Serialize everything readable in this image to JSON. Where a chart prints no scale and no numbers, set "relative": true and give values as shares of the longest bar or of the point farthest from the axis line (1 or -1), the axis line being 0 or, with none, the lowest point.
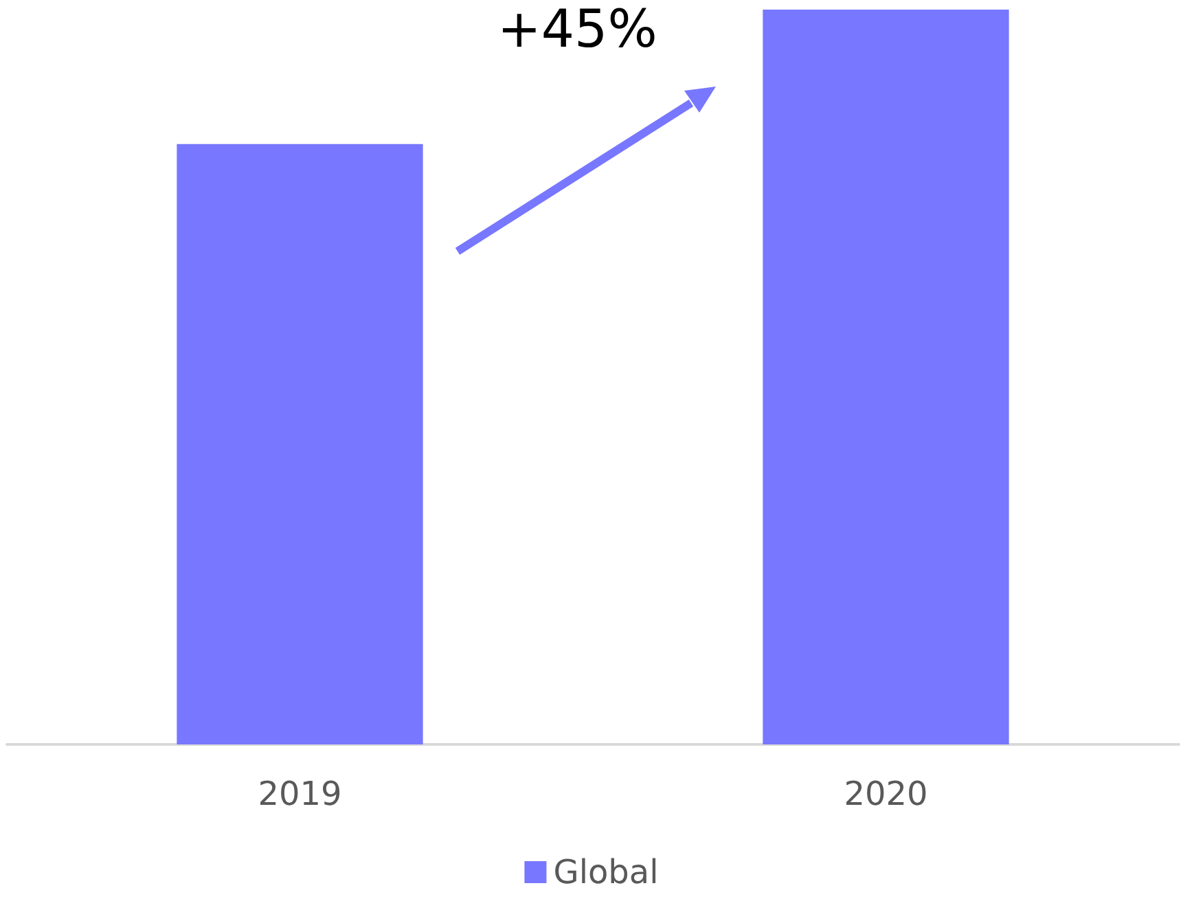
{
  "chart_data": {
    "type": "bar",
    "relative": true,
    "categories": [
      "2019",
      "2020"
    ],
    "series": [
      {
        "name": "Global",
        "color": "#7777ff",
        "values": [
          0.817,
          1
        ]
      }
    ],
    "annotations": [
      "+45%"
    ],
    "legend": "bottom",
    "grid": false
  }
}
